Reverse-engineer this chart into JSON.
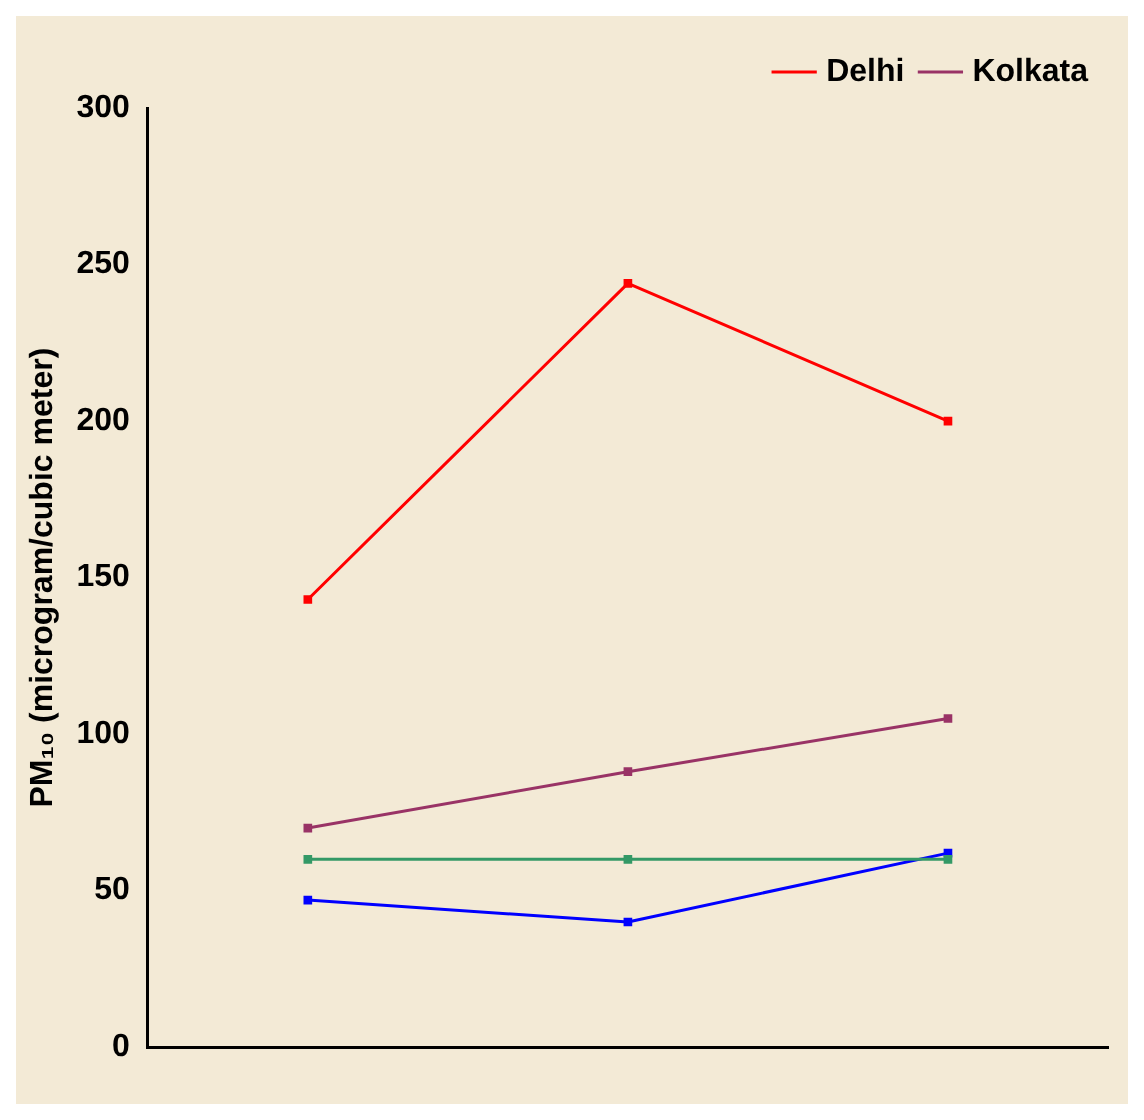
{
  "chart_data": {
    "type": "line",
    "ylabel": "PM₁₀ (microgram/cubic meter)",
    "categories": [
      null,
      null,
      null
    ],
    "series": [
      {
        "name": "Delhi",
        "color": "#ff0000",
        "values": [
          143,
          244,
          200
        ]
      },
      {
        "name": "Kolkata",
        "color": "#993366",
        "values": [
          70,
          88,
          105
        ]
      },
      {
        "color": "#339966",
        "values": [
          60,
          60,
          60
        ]
      },
      {
        "color": "#0000ff",
        "values": [
          47,
          40,
          62
        ]
      }
    ],
    "ylim": [
      0,
      300
    ],
    "yticks": [
      0,
      50,
      100,
      150,
      200,
      250,
      300
    ],
    "grid": false,
    "legend": "top right",
    "marker": "square",
    "line_style": "solid"
  }
}
